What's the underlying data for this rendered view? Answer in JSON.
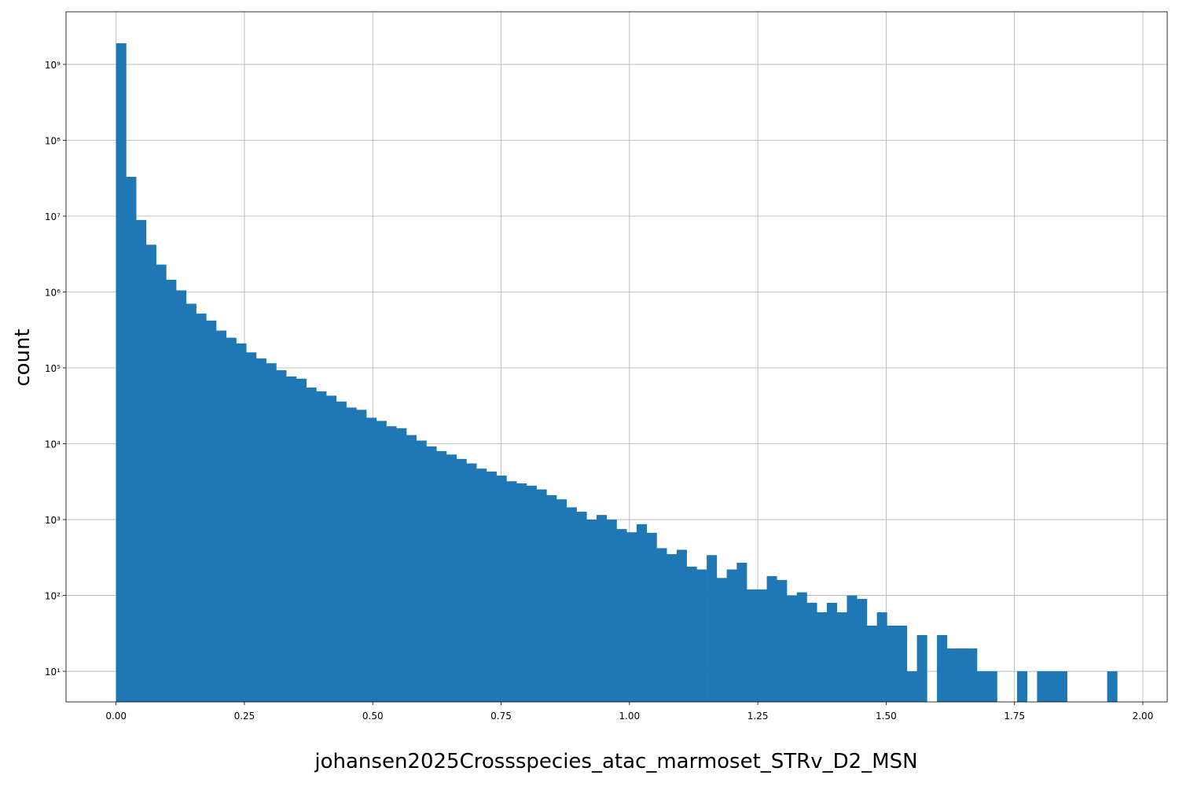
{
  "chart_data": {
    "type": "histogram",
    "xlabel": "johansen2025Crossspecies_atac_marmoset_STRv_D2_MSN",
    "ylabel": "count",
    "color": "#1f77b4",
    "log_y": true,
    "grid": true,
    "bins": [
      0,
      0.0195,
      0.039,
      0.0585,
      0.078,
      0.0975,
      0.117,
      0.1365,
      0.156,
      0.1755,
      0.195,
      0.2145,
      0.234,
      0.2535,
      0.273,
      0.2925,
      0.312,
      0.3315,
      0.351,
      0.3705,
      0.39,
      0.4095,
      0.429,
      0.4485,
      0.468,
      0.4875,
      0.507,
      0.5265,
      0.546,
      0.5655,
      0.585,
      0.6045,
      0.624,
      0.6435,
      0.663,
      0.6825,
      0.702,
      0.7215,
      0.741,
      0.7605,
      0.78,
      0.7995,
      0.819,
      0.8385,
      0.858,
      0.8775,
      0.897,
      0.9165,
      0.936,
      0.9555,
      0.975,
      0.9945,
      1.014,
      1.0335,
      1.053,
      1.0725,
      1.092,
      1.1115,
      1.131,
      1.1505,
      1.17,
      1.1895,
      1.209,
      1.2285,
      1.248,
      1.2675,
      1.287,
      1.3065,
      1.326,
      1.3455,
      1.365,
      1.3845,
      1.404,
      1.4235,
      1.443,
      1.4625,
      1.482,
      1.5015,
      1.521,
      1.5405,
      1.56,
      1.5795,
      1.599,
      1.6185,
      1.638,
      1.6575,
      1.677,
      1.6965,
      1.716,
      1.7355,
      1.755,
      1.7745,
      1.794,
      1.8135,
      1.833,
      1.8525,
      1.872,
      1.8915,
      1.911,
      1.9305,
      1.95
    ],
    "values": [
      1900000000,
      33000000,
      8900000,
      4200000,
      2300000,
      1450000,
      1050000,
      700000,
      520000,
      420000,
      310000,
      250000,
      210000,
      160000,
      133000,
      115000,
      93000,
      77000,
      72000,
      55000,
      49000,
      43000,
      36000,
      30000,
      28000,
      22000,
      20000,
      17000,
      16000,
      13000,
      11000,
      9200,
      8000,
      7200,
      6300,
      5500,
      4700,
      4300,
      3800,
      3200,
      3000,
      2800,
      2500,
      2100,
      1850,
      1450,
      1270,
      1000,
      1150,
      1000,
      750,
      680,
      870,
      670,
      420,
      350,
      400,
      240,
      220,
      340,
      170,
      220,
      270,
      120,
      120,
      180,
      160,
      100,
      110,
      80,
      60,
      80,
      60,
      100,
      90,
      40,
      60,
      40,
      40,
      10,
      30,
      0,
      30,
      20,
      20,
      20,
      10,
      10,
      0,
      0,
      10,
      0,
      10,
      10,
      10,
      0,
      0,
      0,
      0,
      10
    ],
    "xlim": [
      -0.0975,
      2.0475
    ],
    "ylim": [
      3.95,
      4940000000
    ],
    "xticks": [
      {
        "value": 0,
        "label": "0.00"
      },
      {
        "value": 0.25,
        "label": "0.25"
      },
      {
        "value": 0.5,
        "label": "0.50"
      },
      {
        "value": 0.75,
        "label": "0.75"
      },
      {
        "value": 1,
        "label": "1.00"
      },
      {
        "value": 1.25,
        "label": "1.25"
      },
      {
        "value": 1.5,
        "label": "1.50"
      },
      {
        "value": 1.75,
        "label": "1.75"
      },
      {
        "value": 2,
        "label": "2.00"
      }
    ],
    "yticks": [
      {
        "value": 10,
        "label": "10¹"
      },
      {
        "value": 100,
        "label": "10²"
      },
      {
        "value": 1000,
        "label": "10³"
      },
      {
        "value": 10000,
        "label": "10⁴"
      },
      {
        "value": 100000,
        "label": "10⁵"
      },
      {
        "value": 1000000,
        "label": "10⁶"
      },
      {
        "value": 10000000,
        "label": "10⁷"
      },
      {
        "value": 100000000,
        "label": "10⁸"
      },
      {
        "value": 1000000000,
        "label": "10⁹"
      }
    ]
  }
}
